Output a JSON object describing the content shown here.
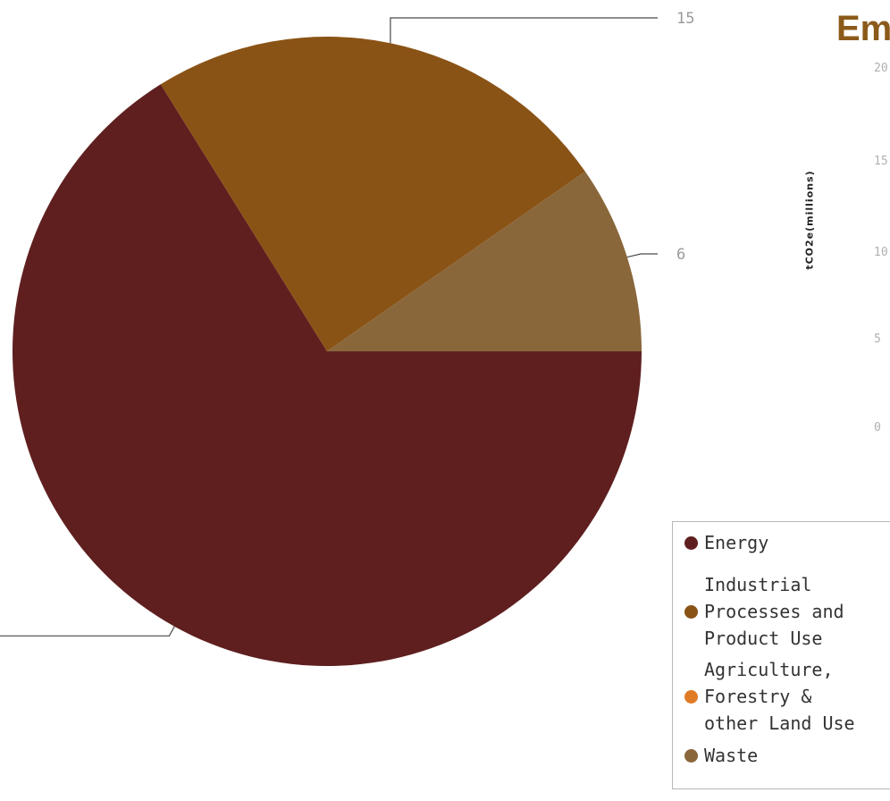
{
  "chart_data": [
    {
      "type": "pie",
      "title": "",
      "slices": [
        {
          "label": "Energy",
          "value": 41,
          "color": "#5f1f1f",
          "data_label": ""
        },
        {
          "label": "Industrial Processes and Product Use",
          "value": 15,
          "color": "#8a5316",
          "data_label": "15"
        },
        {
          "label": "Waste",
          "value": 6,
          "color": "#89673b",
          "data_label": "6"
        }
      ],
      "legend": {
        "position": "bottom-right",
        "items": [
          {
            "label": "Energy",
            "color": "#5f1f1f"
          },
          {
            "label": "Industrial\nProcesses and\nProduct Use",
            "color": "#8a5316"
          },
          {
            "label": "Agriculture,\nForestry &\nother Land Use",
            "color": "#e07b25"
          },
          {
            "label": "Waste",
            "color": "#89673b"
          }
        ]
      }
    },
    {
      "type": "bar",
      "title": "Em",
      "ylabel": "tCO2e(millions)",
      "ytick_labels": [
        "20",
        "15",
        "10",
        "5",
        "0"
      ],
      "ylim": [
        0,
        20
      ]
    }
  ]
}
